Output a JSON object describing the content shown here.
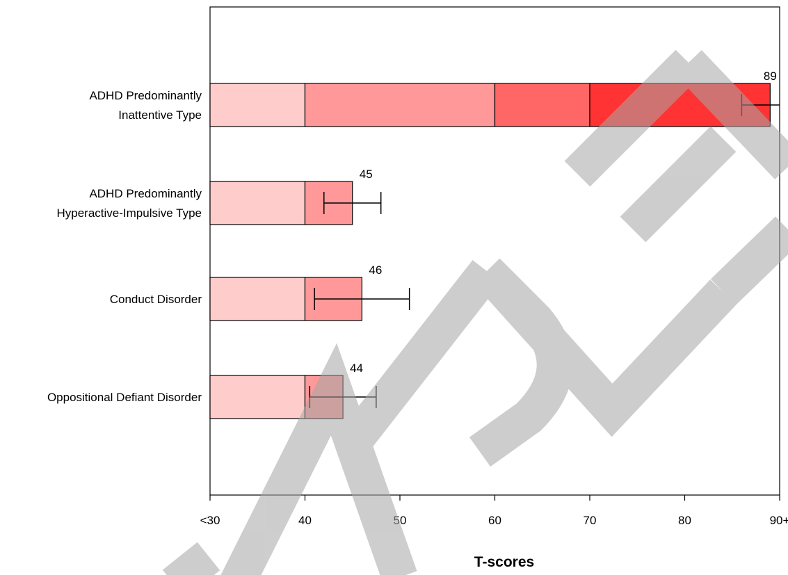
{
  "chart_data": {
    "type": "bar",
    "xlabel": "T-scores",
    "xlim": [
      30,
      90
    ],
    "xticks": [
      {
        "value": 30,
        "label": "<30"
      },
      {
        "value": 40,
        "label": "40"
      },
      {
        "value": 50,
        "label": "50"
      },
      {
        "value": 60,
        "label": "60"
      },
      {
        "value": 70,
        "label": "70"
      },
      {
        "value": 80,
        "label": "80"
      },
      {
        "value": 90,
        "label": "90+"
      }
    ],
    "bands": [
      {
        "from": 30,
        "to": 40,
        "color": "#ffcccc"
      },
      {
        "from": 40,
        "to": 60,
        "color": "#ff9999"
      },
      {
        "from": 60,
        "to": 70,
        "color": "#ff6666"
      },
      {
        "from": 70,
        "to": 90,
        "color": "#ff3333"
      }
    ],
    "categories": [
      {
        "lines": [
          "ADHD Predominantly",
          "Inattentive Type"
        ],
        "value": 89,
        "label": "89",
        "error": [
          86,
          90
        ]
      },
      {
        "lines": [
          "ADHD Predominantly",
          "Hyperactive-Impulsive Type"
        ],
        "value": 45,
        "label": "45",
        "error": [
          42,
          48
        ]
      },
      {
        "lines": [
          "Conduct Disorder"
        ],
        "value": 46,
        "label": "46",
        "error": [
          41,
          51
        ]
      },
      {
        "lines": [
          "Oppositional Defiant Disorder"
        ],
        "value": 44,
        "label": "44",
        "error": [
          40.5,
          47.5
        ]
      }
    ]
  },
  "watermark": "SAMPLE"
}
